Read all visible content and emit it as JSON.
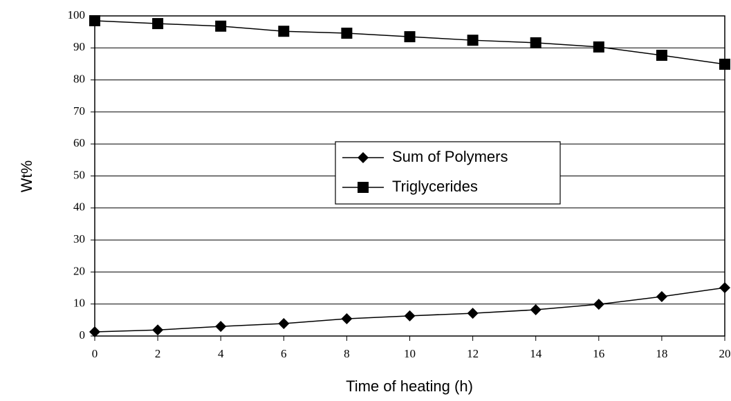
{
  "chart_data": {
    "type": "line",
    "x_label": "Time of heating (h)",
    "y_label": "Wt%",
    "x": [
      0,
      2,
      4,
      6,
      8,
      10,
      12,
      14,
      16,
      18,
      20
    ],
    "series": [
      {
        "name": "Sum of Polymers",
        "color": "#000000",
        "marker": "diamond",
        "values": [
          1.3,
          1.9,
          3.0,
          3.9,
          5.4,
          6.3,
          7.1,
          8.2,
          9.9,
          12.3,
          15.1
        ]
      },
      {
        "name": "Triglycerides",
        "color": "#000000",
        "marker": "square",
        "values": [
          98.5,
          97.6,
          96.8,
          95.2,
          94.6,
          93.5,
          92.4,
          91.6,
          90.3,
          87.7,
          84.9
        ]
      }
    ],
    "xlim": [
      0,
      20
    ],
    "xticks": [
      0,
      2,
      4,
      6,
      8,
      10,
      12,
      14,
      16,
      18,
      20
    ],
    "ylim": [
      0,
      100
    ],
    "yticks": [
      0,
      10,
      20,
      30,
      40,
      50,
      60,
      70,
      80,
      90,
      100
    ],
    "grid": true
  }
}
